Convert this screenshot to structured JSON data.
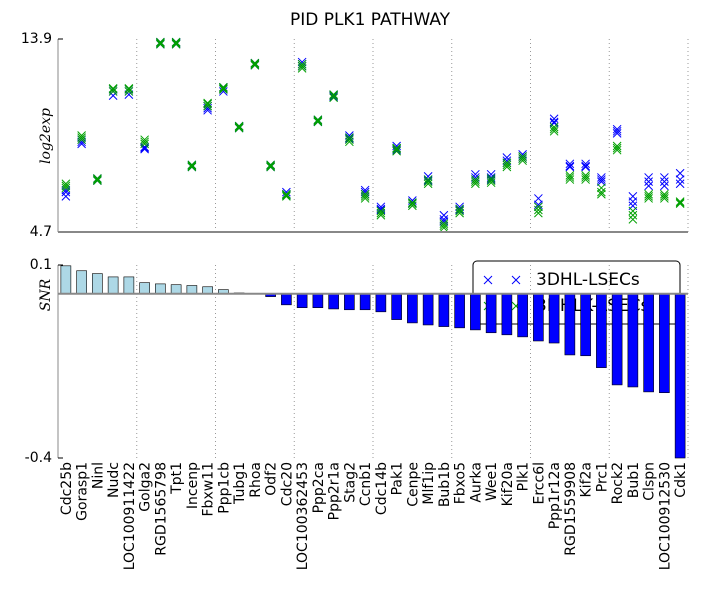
{
  "chart_data": [
    {
      "type": "scatter",
      "title": "PID PLK1 PATHWAY",
      "y_label": "log2exp",
      "ylim": [
        4.7,
        13.9
      ],
      "yticks": [
        4.7,
        13.9
      ],
      "series": [
        {
          "name": "3DHL-LSECs",
          "color": "#0000ff",
          "values": [
            [
              6.4,
              6.6,
              6.7
            ],
            [
              8.9,
              9.0,
              9.1
            ],
            [
              7.15,
              7.2,
              7.25
            ],
            [
              11.2,
              11.4,
              11.5
            ],
            [
              11.25,
              11.4,
              11.5
            ],
            [
              8.65,
              8.7,
              8.75
            ],
            [
              13.65,
              13.7,
              13.75
            ],
            [
              13.65,
              13.7,
              13.75
            ],
            [
              7.8,
              7.85,
              7.9
            ],
            [
              10.5,
              10.6,
              10.7
            ],
            [
              11.4,
              11.5,
              11.6
            ],
            [
              9.65,
              9.7,
              9.75
            ],
            [
              12.65,
              12.7,
              12.75
            ],
            [
              7.8,
              7.85,
              7.9
            ],
            [
              6.45,
              6.5,
              6.6
            ],
            [
              12.6,
              12.7,
              12.8
            ],
            [
              9.95,
              10.0,
              10.05
            ],
            [
              11.15,
              11.2,
              11.25
            ],
            [
              9.15,
              9.2,
              9.3
            ],
            [
              6.5,
              6.6,
              6.7
            ],
            [
              5.75,
              5.8,
              5.9
            ],
            [
              8.6,
              8.7,
              8.8
            ],
            [
              6.05,
              6.1,
              6.2
            ],
            [
              7.15,
              7.2,
              7.35
            ],
            [
              5.2,
              5.3,
              5.5
            ],
            [
              5.75,
              5.8,
              5.9
            ],
            [
              7.2,
              7.3,
              7.45
            ],
            [
              7.2,
              7.3,
              7.45
            ],
            [
              8.0,
              8.1,
              8.25
            ],
            [
              8.2,
              8.3,
              8.4
            ],
            [
              5.9,
              6.0,
              6.3
            ],
            [
              9.9,
              9.95,
              10.1
            ],
            [
              7.8,
              7.85,
              7.95
            ],
            [
              7.8,
              7.85,
              7.95
            ],
            [
              7.1,
              7.2,
              7.3
            ],
            [
              9.4,
              9.5,
              9.6
            ],
            [
              5.95,
              6.15,
              6.4
            ],
            [
              6.9,
              7.1,
              7.3
            ],
            [
              6.9,
              7.1,
              7.3
            ],
            [
              7.0,
              7.2,
              7.5
            ]
          ]
        },
        {
          "name": "3DHLK-LSECs",
          "color": "#00a000",
          "values": [
            [
              6.8,
              6.9,
              7.0
            ],
            [
              9.1,
              9.2,
              9.3
            ],
            [
              7.15,
              7.2,
              7.25
            ],
            [
              11.4,
              11.5,
              11.55
            ],
            [
              11.4,
              11.5,
              11.55
            ],
            [
              8.9,
              9.0,
              9.1
            ],
            [
              13.65,
              13.7,
              13.75
            ],
            [
              13.65,
              13.7,
              13.75
            ],
            [
              7.8,
              7.85,
              7.9
            ],
            [
              10.7,
              10.8,
              10.85
            ],
            [
              11.5,
              11.55,
              11.6
            ],
            [
              9.65,
              9.7,
              9.75
            ],
            [
              12.65,
              12.7,
              12.75
            ],
            [
              7.8,
              7.85,
              7.9
            ],
            [
              6.4,
              6.45,
              6.5
            ],
            [
              12.5,
              12.6,
              12.7
            ],
            [
              9.95,
              10.0,
              10.05
            ],
            [
              11.1,
              11.2,
              11.25
            ],
            [
              9.0,
              9.1,
              9.2
            ],
            [
              6.3,
              6.4,
              6.5
            ],
            [
              5.5,
              5.6,
              5.7
            ],
            [
              8.55,
              8.65,
              8.7
            ],
            [
              5.95,
              6.05,
              6.1
            ],
            [
              7.0,
              7.1,
              7.2
            ],
            [
              4.9,
              5.0,
              5.1
            ],
            [
              5.6,
              5.7,
              5.8
            ],
            [
              7.0,
              7.1,
              7.2
            ],
            [
              7.05,
              7.15,
              7.25
            ],
            [
              7.8,
              7.9,
              8.0
            ],
            [
              8.1,
              8.2,
              8.3
            ],
            [
              5.6,
              5.75,
              5.9
            ],
            [
              9.5,
              9.6,
              9.7
            ],
            [
              7.2,
              7.3,
              7.4
            ],
            [
              7.2,
              7.3,
              7.4
            ],
            [
              6.5,
              6.6,
              6.8
            ],
            [
              8.6,
              8.7,
              8.8
            ],
            [
              5.3,
              5.5,
              5.7
            ],
            [
              6.3,
              6.4,
              6.5
            ],
            [
              6.3,
              6.4,
              6.5
            ],
            [
              6.05,
              6.1,
              6.15
            ]
          ]
        }
      ]
    },
    {
      "type": "bar",
      "y_label": "SNR",
      "ylim": [
        -0.4,
        0.07
      ],
      "yticks": [
        {
          "value": 0.07,
          "label": "0.1"
        },
        -0.4
      ],
      "legend": "upper right",
      "categories": [
        "Cdc25b",
        "Gorasp1",
        "Ninl",
        "Nudc",
        "LOC100911422",
        "Golga2",
        "RGD1565798",
        "Tpt1",
        "Incenp",
        "Fbxw11",
        "Ppp1cb",
        "Tubg1",
        "Rhoa",
        "Odf2",
        "Cdc20",
        "LOC100362453",
        "Ppp2ca",
        "Ppp2r1a",
        "Stag2",
        "Ccnb1",
        "Cdc14b",
        "Pak1",
        "Cenpe",
        "Mlf1ip",
        "Bub1b",
        "Fbxo5",
        "Aurka",
        "Wee1",
        "Kif20a",
        "Plk1",
        "Ercc6l",
        "Ppp1r12a",
        "RGD1559908",
        "Kif2a",
        "Prc1",
        "Rock2",
        "Bub1",
        "Clspn",
        "LOC100912530",
        "Cdk1"
      ],
      "values": [
        0.068,
        0.056,
        0.049,
        0.041,
        0.041,
        0.027,
        0.024,
        0.022,
        0.02,
        0.017,
        0.01,
        0.002,
        -0.001,
        -0.007,
        -0.027,
        -0.034,
        -0.034,
        -0.037,
        -0.039,
        -0.039,
        -0.044,
        -0.063,
        -0.071,
        -0.076,
        -0.08,
        -0.083,
        -0.088,
        -0.095,
        -0.1,
        -0.105,
        -0.115,
        -0.12,
        -0.149,
        -0.151,
        -0.18,
        -0.222,
        -0.227,
        -0.239,
        -0.241,
        -0.4
      ],
      "colors": {
        "positive": "#add8e6",
        "negative": "#0000ff"
      }
    }
  ]
}
